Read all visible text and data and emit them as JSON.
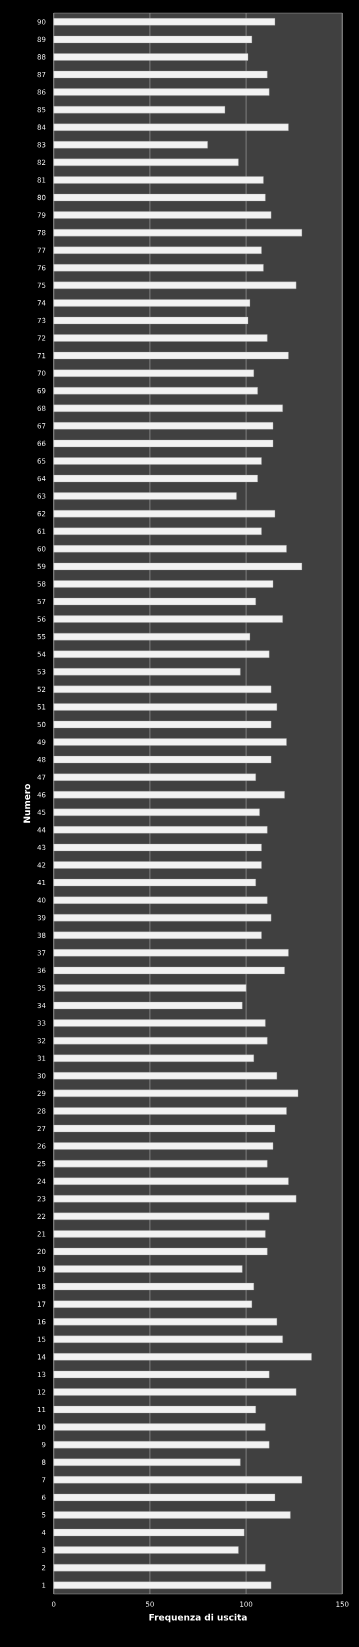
{
  "chart_data": {
    "type": "bar",
    "orientation": "horizontal",
    "xlabel": "Frequenza di uscita",
    "ylabel": "Numero",
    "categories": [
      "90",
      "89",
      "88",
      "87",
      "86",
      "85",
      "84",
      "83",
      "82",
      "81",
      "80",
      "79",
      "78",
      "77",
      "76",
      "75",
      "74",
      "73",
      "72",
      "71",
      "70",
      "69",
      "68",
      "67",
      "66",
      "65",
      "64",
      "63",
      "62",
      "61",
      "60",
      "59",
      "58",
      "57",
      "56",
      "55",
      "54",
      "53",
      "52",
      "51",
      "50",
      "49",
      "48",
      "47",
      "46",
      "45",
      "44",
      "43",
      "42",
      "41",
      "40",
      "39",
      "38",
      "37",
      "36",
      "35",
      "34",
      "33",
      "32",
      "31",
      "30",
      "29",
      "28",
      "27",
      "26",
      "25",
      "24",
      "23",
      "22",
      "21",
      "20",
      "19",
      "18",
      "17",
      "16",
      "15",
      "14",
      "13",
      "12",
      "11",
      "10",
      "9",
      "8",
      "7",
      "6",
      "5",
      "4",
      "3",
      "2",
      "1"
    ],
    "values": [
      115,
      103,
      101,
      111,
      112,
      89,
      122,
      80,
      96,
      109,
      110,
      113,
      129,
      108,
      109,
      126,
      102,
      101,
      111,
      122,
      104,
      106,
      119,
      114,
      114,
      108,
      106,
      95,
      115,
      108,
      121,
      129,
      114,
      105,
      119,
      102,
      112,
      97,
      113,
      116,
      113,
      121,
      113,
      105,
      120,
      107,
      111,
      108,
      108,
      105,
      111,
      113,
      108,
      122,
      120,
      100,
      98,
      110,
      111,
      104,
      116,
      127,
      121,
      115,
      114,
      111,
      122,
      126,
      112,
      110,
      111,
      98,
      104,
      103,
      116,
      119,
      134,
      112,
      126,
      105,
      110,
      112,
      97,
      129,
      115,
      123,
      99,
      96,
      110,
      113
    ],
    "color": "#f2f2f2",
    "xlim": [
      0,
      150
    ],
    "xticks": [
      0,
      50,
      100,
      150
    ],
    "grid": "x"
  }
}
